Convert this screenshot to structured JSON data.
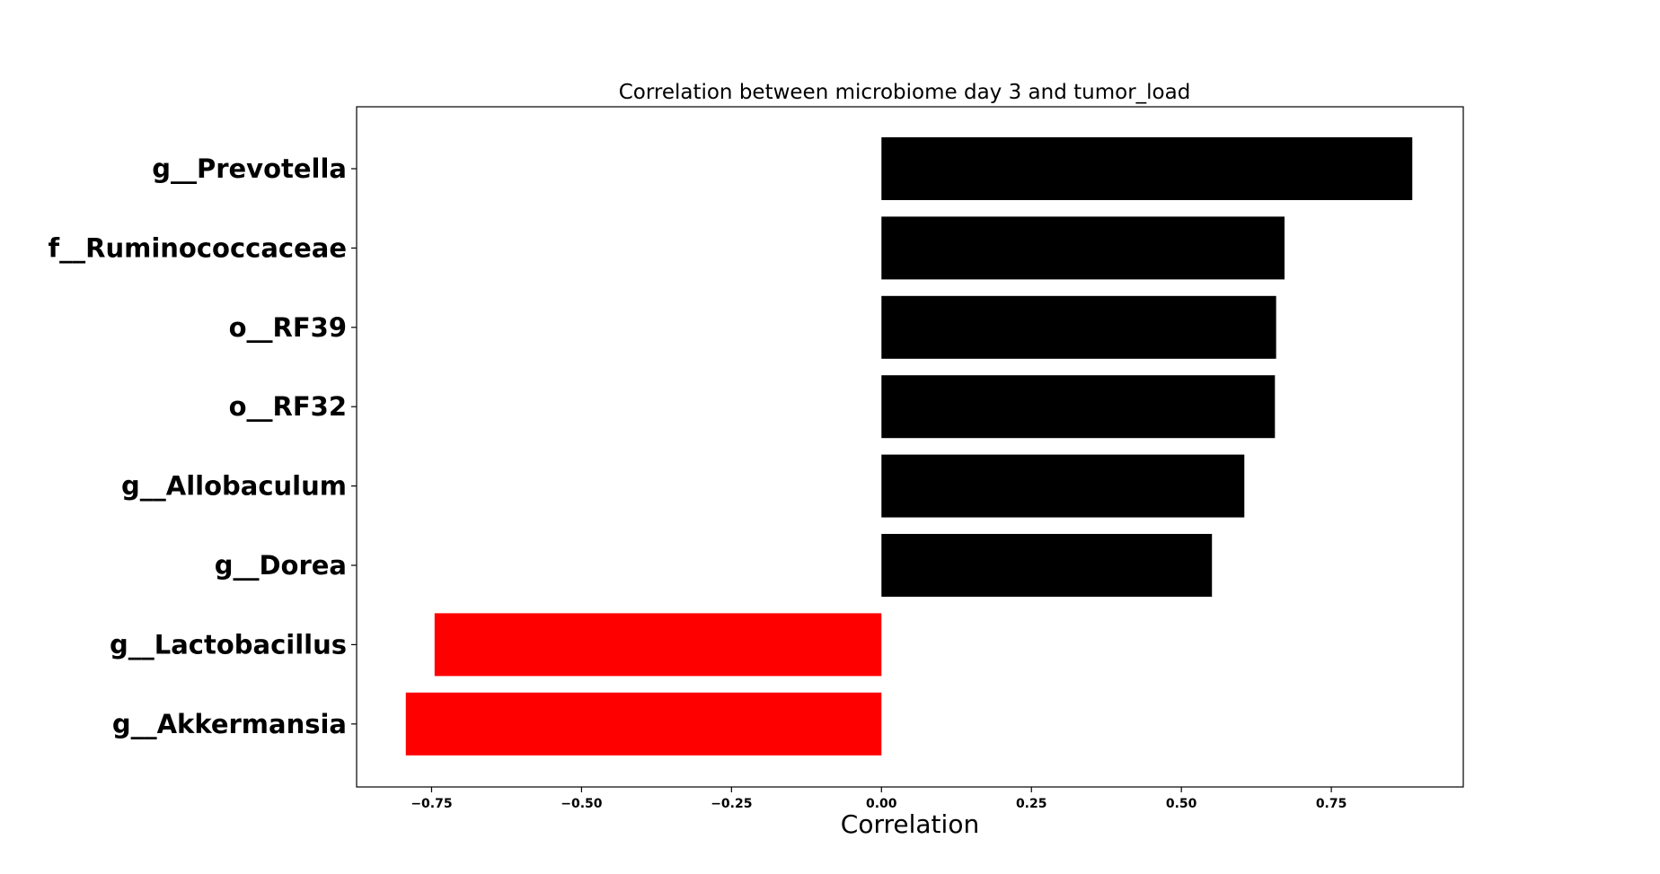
{
  "chart_data": {
    "type": "bar",
    "orientation": "horizontal",
    "title": "Correlation between microbiome day 3 and tumor_load",
    "xlabel": "Correlation",
    "ylabel": "",
    "categories": [
      "g__Prevotella",
      "f__Ruminococcaceae",
      "o__RF39",
      "o__RF32",
      "g__Allobaculum",
      "g__Dorea",
      "g__Lactobacillus",
      "g__Akkermansia"
    ],
    "values": [
      0.885,
      0.672,
      0.658,
      0.656,
      0.605,
      0.551,
      -0.745,
      -0.793
    ],
    "xlim": [
      -0.875,
      0.97
    ],
    "xticks": [
      -0.75,
      -0.5,
      -0.25,
      0.0,
      0.25,
      0.5,
      0.75
    ],
    "xtick_labels": [
      "−0.75",
      "−0.50",
      "−0.25",
      "0.00",
      "0.25",
      "0.50",
      "0.75"
    ],
    "positive_color": "#000000",
    "negative_color": "#ff0000",
    "grid": false,
    "legend": "none"
  }
}
